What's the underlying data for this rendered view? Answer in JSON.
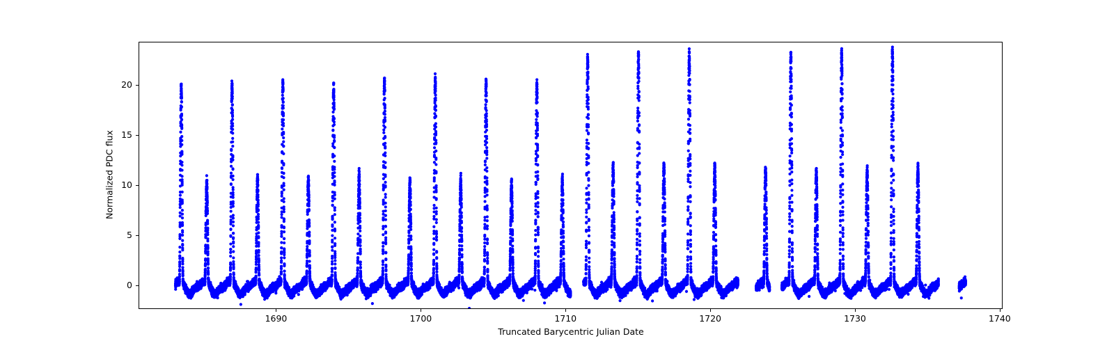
{
  "figure": {
    "background": "#ffffff",
    "frame_color": "#000000"
  },
  "chart_data": {
    "type": "scatter",
    "xlabel": "Truncated Barycentric Julian Date",
    "ylabel": "Normalized PDC flux",
    "xlim": [
      1680.5,
      1740.2
    ],
    "ylim": [
      -2.36,
      24.31
    ],
    "xticks": [
      1690,
      1700,
      1710,
      1720,
      1730,
      1740
    ],
    "yticks": [
      0,
      5,
      10,
      15,
      20
    ],
    "grid": false,
    "marker_color": "#0000ff",
    "marker_radius_px": 2.1,
    "cadence_points_per_day": 600,
    "peak_period_days": 1.755,
    "peak_anchor_tbjd": 1683.45,
    "spike_half_width_days": 0.13,
    "data_segments_tbjd": [
      [
        1683.05,
        1710.35
      ],
      [
        1711.25,
        1721.92
      ],
      [
        1723.17,
        1724.1
      ],
      [
        1724.95,
        1735.77
      ],
      [
        1737.2,
        1737.65
      ]
    ],
    "tall_peaks": [
      {
        "t": 1683.45,
        "f": 19.8
      },
      {
        "t": 1686.96,
        "f": 20.0
      },
      {
        "t": 1690.47,
        "f": 20.1
      },
      {
        "t": 1693.98,
        "f": 19.8
      },
      {
        "t": 1697.49,
        "f": 20.4
      },
      {
        "t": 1701.0,
        "f": 20.4
      },
      {
        "t": 1704.51,
        "f": 20.2
      },
      {
        "t": 1708.02,
        "f": 19.9
      },
      {
        "t": 1711.53,
        "f": 22.6
      },
      {
        "t": 1715.04,
        "f": 23.0
      },
      {
        "t": 1718.55,
        "f": 23.0
      },
      {
        "t": 1725.57,
        "f": 22.9
      },
      {
        "t": 1729.08,
        "f": 23.0
      },
      {
        "t": 1732.59,
        "f": 23.2
      }
    ],
    "short_peaks": [
      {
        "t": 1685.21,
        "f": 10.35
      },
      {
        "t": 1688.72,
        "f": 10.5
      },
      {
        "t": 1692.23,
        "f": 10.6
      },
      {
        "t": 1695.74,
        "f": 10.8
      },
      {
        "t": 1699.25,
        "f": 10.4
      },
      {
        "t": 1702.76,
        "f": 10.3
      },
      {
        "t": 1706.27,
        "f": 10.15
      },
      {
        "t": 1709.78,
        "f": 10.3
      },
      {
        "t": 1713.29,
        "f": 11.8
      },
      {
        "t": 1716.8,
        "f": 11.9
      },
      {
        "t": 1720.31,
        "f": 11.7
      },
      {
        "t": 1723.82,
        "f": 11.4
      },
      {
        "t": 1727.33,
        "f": 11.3
      },
      {
        "t": 1730.84,
        "f": 11.3
      },
      {
        "t": 1734.35,
        "f": 11.7
      }
    ],
    "baseline": {
      "mean_level": -0.15,
      "noise_sigma": 0.17,
      "pedestal_height": 0.55,
      "pedestal_width_days": 0.26,
      "post_peak_dip_depth": 0.72,
      "dip_offset_days": 0.58,
      "dip_width_days": 0.3,
      "pre_peak_bump": 0.33,
      "pre_peak_bump_offset_days": 0.31,
      "pre_peak_bump_width_days": 0.16
    }
  }
}
